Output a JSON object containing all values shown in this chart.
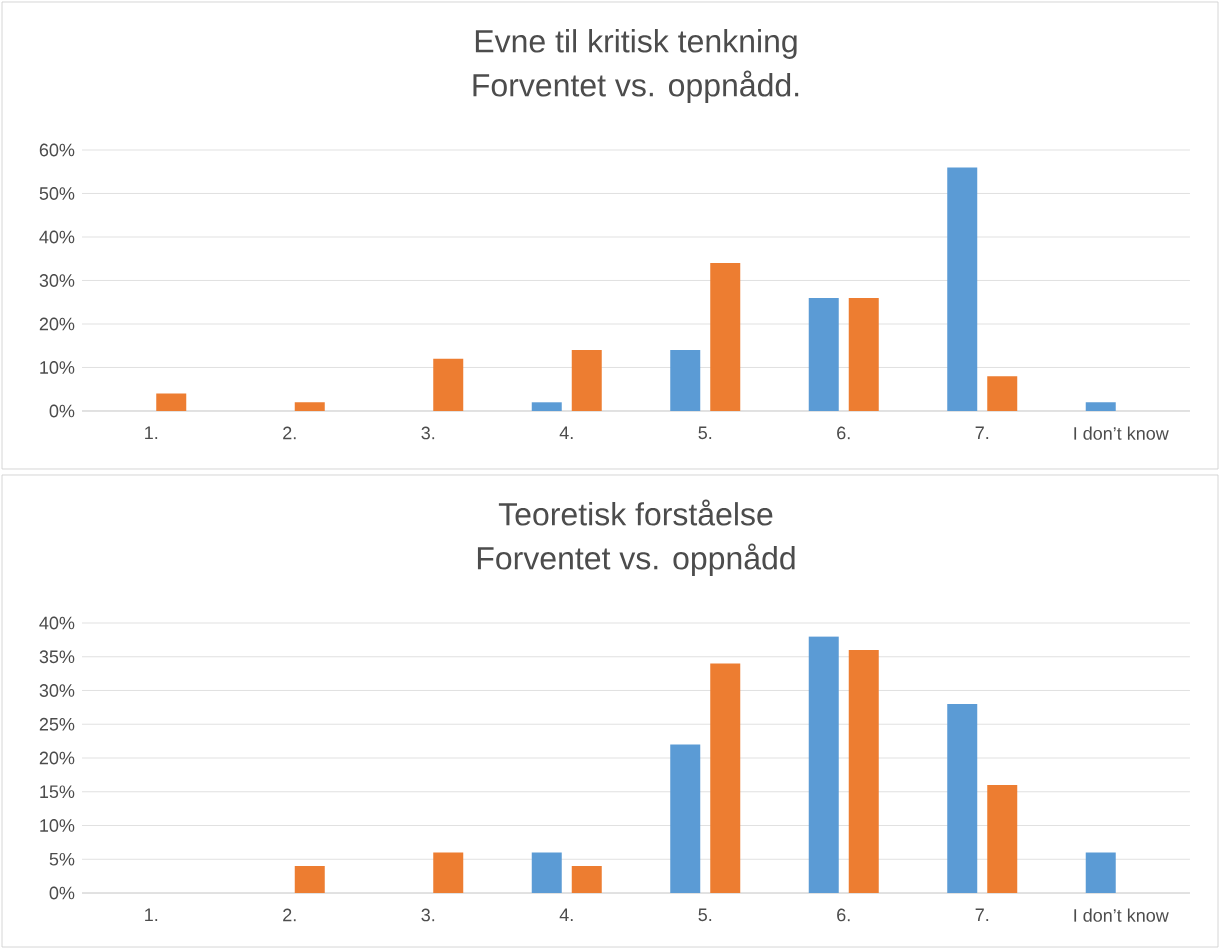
{
  "chart_data": [
    {
      "type": "bar",
      "title": "Evne til kritisk tenkning",
      "subtitle": "Forventet vs. oppnådd.",
      "categories": [
        "1.",
        "2.",
        "3.",
        "4.",
        "5.",
        "6.",
        "7.",
        "I don’t know"
      ],
      "series": [
        {
          "color": "#5b9bd5",
          "values": [
            0,
            0,
            0,
            2,
            14,
            26,
            56,
            2
          ]
        },
        {
          "color": "#ed7d31",
          "values": [
            4,
            2,
            12,
            14,
            34,
            26,
            8,
            0
          ]
        }
      ],
      "ylim": [
        0,
        60
      ],
      "yticks": [
        {
          "value": 0,
          "label": "0%"
        },
        {
          "value": 10,
          "label": "10%"
        },
        {
          "value": 20,
          "label": "20%"
        },
        {
          "value": 30,
          "label": "30%"
        },
        {
          "value": 40,
          "label": "40%"
        },
        {
          "value": 50,
          "label": "50%"
        },
        {
          "value": 60,
          "label": "60%"
        }
      ],
      "grid": "y"
    },
    {
      "type": "bar",
      "title": "Teoretisk forståelse",
      "subtitle": "Forventet vs. oppnådd",
      "categories": [
        "1.",
        "2.",
        "3.",
        "4.",
        "5.",
        "6.",
        "7.",
        "I don’t know"
      ],
      "series": [
        {
          "color": "#5b9bd5",
          "values": [
            0,
            0,
            0,
            6,
            22,
            38,
            28,
            6
          ]
        },
        {
          "color": "#ed7d31",
          "values": [
            0,
            4,
            6,
            4,
            34,
            36,
            16,
            0
          ]
        }
      ],
      "ylim": [
        0,
        40
      ],
      "yticks": [
        {
          "value": 0,
          "label": "0%"
        },
        {
          "value": 5,
          "label": "5%"
        },
        {
          "value": 10,
          "label": "10%"
        },
        {
          "value": 15,
          "label": "15%"
        },
        {
          "value": 20,
          "label": "20%"
        },
        {
          "value": 25,
          "label": "25%"
        },
        {
          "value": 30,
          "label": "30%"
        },
        {
          "value": 35,
          "label": "35%"
        },
        {
          "value": 40,
          "label": "40%"
        }
      ],
      "grid": "y"
    }
  ]
}
